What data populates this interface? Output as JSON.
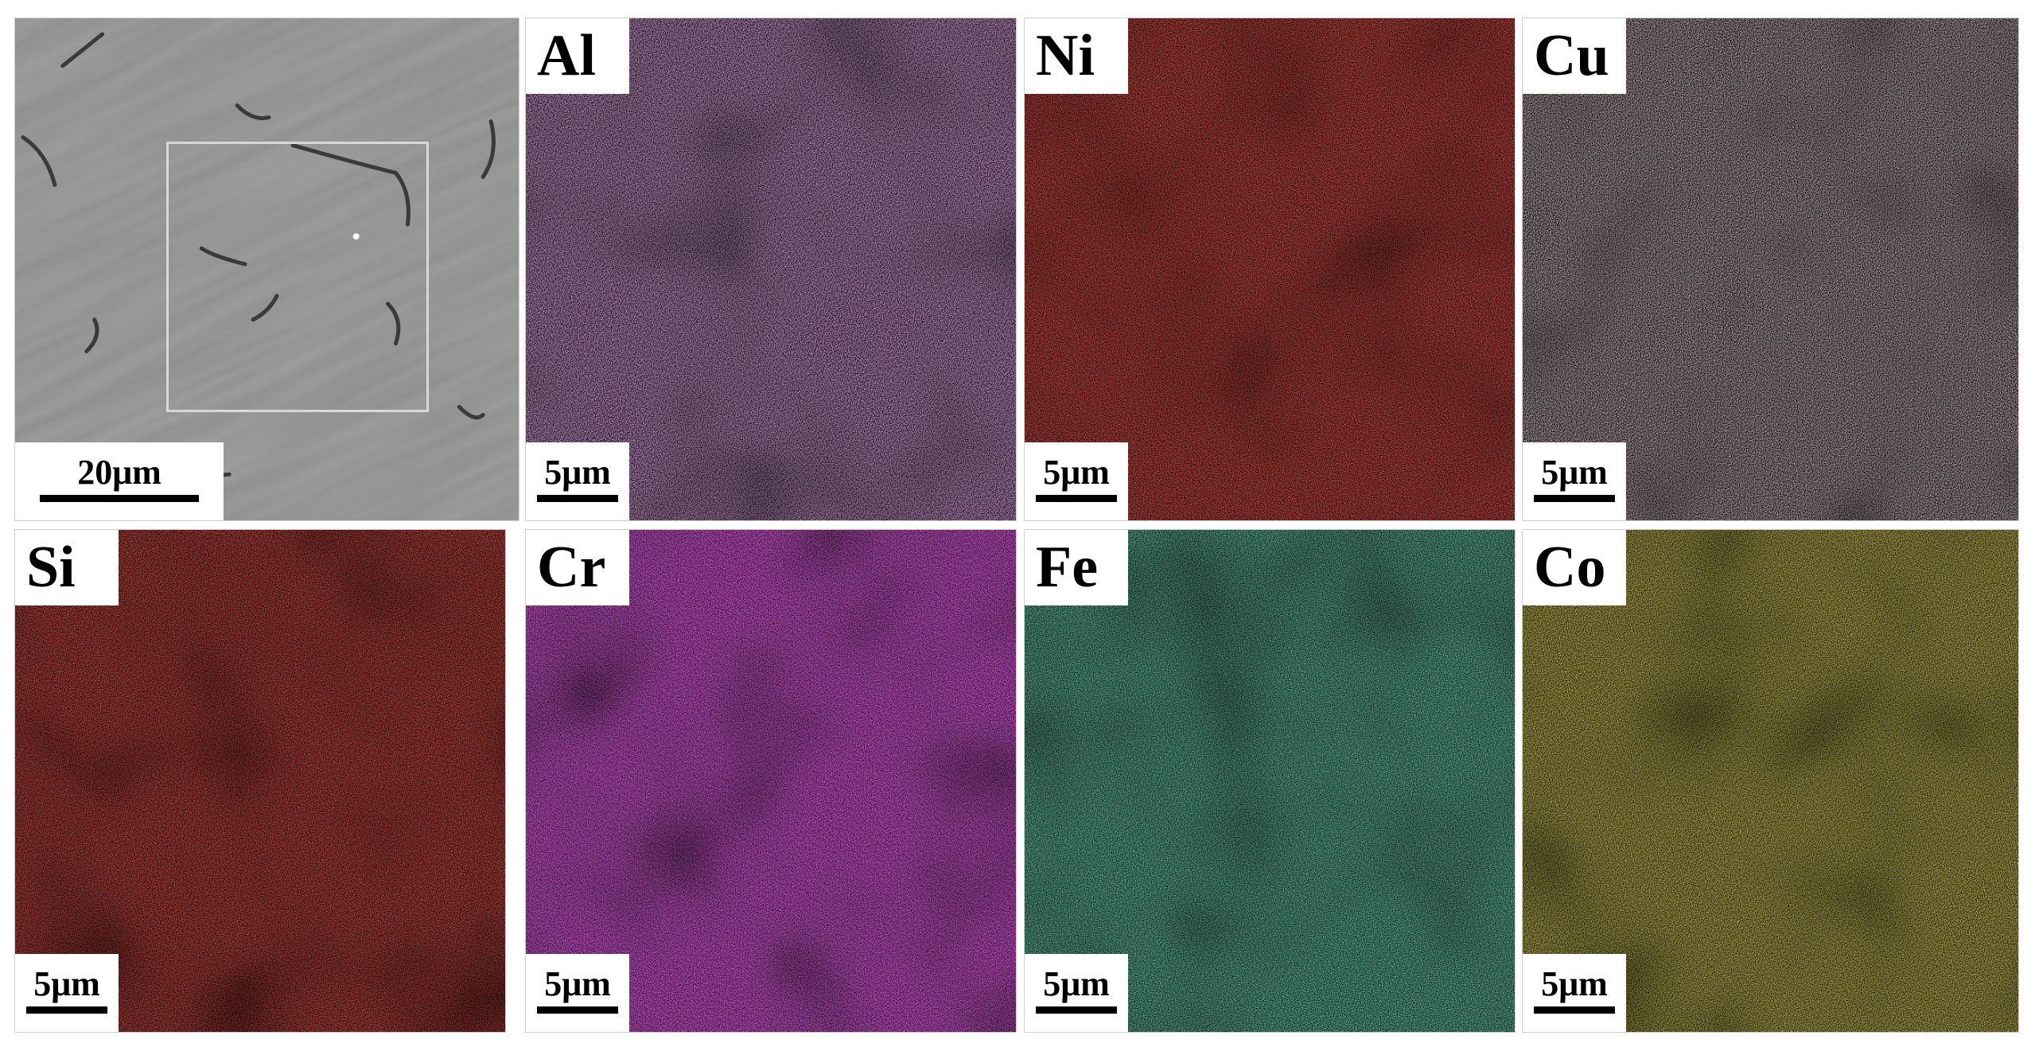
{
  "sem_panel": {
    "scale": "20μm",
    "icon": "sem-micrograph-image"
  },
  "panels": [
    {
      "element": "Al",
      "scale": "5μm",
      "color": "#e487e6",
      "dark": "#1a0a1c"
    },
    {
      "element": "Ni",
      "scale": "5μm",
      "color": "#e3201b",
      "dark": "#230504"
    },
    {
      "element": "Cu",
      "scale": "5μm",
      "color": "#e6b6bd",
      "dark": "#050303"
    },
    {
      "element": "Si",
      "scale": "5μm",
      "color": "#d11e1a",
      "dark": "#220504"
    },
    {
      "element": "Cr",
      "scale": "5μm",
      "color": "#e52fe6",
      "dark": "#3a0a3b"
    },
    {
      "element": "Fe",
      "scale": "5μm",
      "color": "#3bb48a",
      "dark": "#07251b"
    },
    {
      "element": "Co",
      "scale": "5μm",
      "color": "#c9b529",
      "dark": "#1f1c05"
    }
  ]
}
